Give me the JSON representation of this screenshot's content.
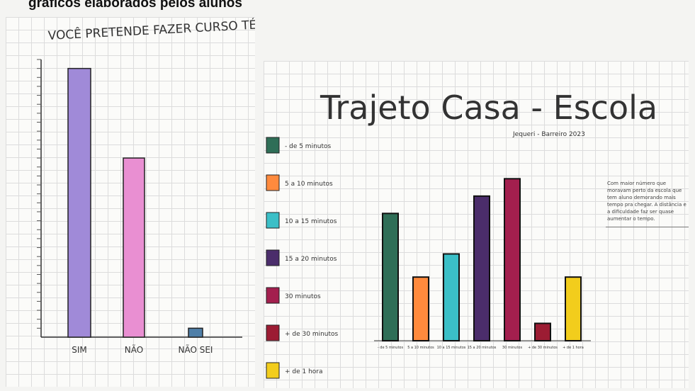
{
  "caption": "gráficos elaborados pelos alunos",
  "chart_data": [
    {
      "type": "bar",
      "title": "VOCÊ PRETENDE FAZER CURSO TÉCNICO?",
      "categories": [
        "SIM",
        "NÃO",
        "NÃO SEI"
      ],
      "values": [
        30,
        20,
        1
      ],
      "ylim": [
        0,
        31
      ],
      "colors": [
        "#a08ad8",
        "#e98fd2",
        "#4f7fa8"
      ],
      "grid": true
    },
    {
      "type": "bar",
      "title": "Trajeto Casa - Escola",
      "subtitle": "Jequeri - Barreiro 2023",
      "categories": [
        "- de 5 minutos",
        "5 a 10 minutos",
        "10 a 15 minutos",
        "15 a 20 minutos",
        "30 minutos",
        "+ de 30 minutos",
        "+ de 1 hora"
      ],
      "values": [
        11,
        5.5,
        7.5,
        12.5,
        14,
        1.5,
        5.5
      ],
      "ylim": [
        0,
        15
      ],
      "colors": [
        "#2f6e57",
        "#ff8a3d",
        "#3bbfc7",
        "#4b2d6b",
        "#a31f4e",
        "#9c1c33",
        "#f2cd1c"
      ],
      "legend": "left",
      "grid": true,
      "annotation": "Com maior número que moravam perto da escola que tem aluno demorando mais tempo pra chegar. A distância e a dificuldade faz ser quase aumentar o tempo."
    }
  ]
}
